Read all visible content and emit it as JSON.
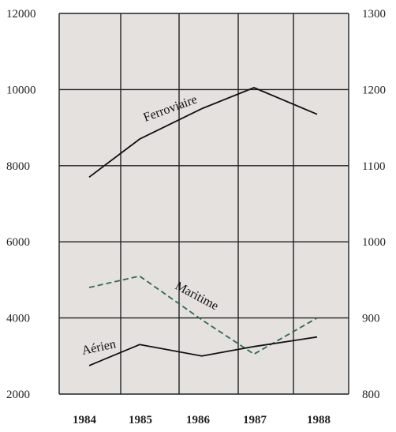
{
  "chart_data": {
    "type": "line",
    "title": "",
    "xlabel": "",
    "ylabel": "",
    "x": [
      "1984",
      "1985",
      "1986",
      "1987",
      "1988"
    ],
    "ylim_left": [
      2000,
      12000
    ],
    "ylim_right": [
      800,
      1300
    ],
    "yticks_left": [
      "2000",
      "4000",
      "6000",
      "8000",
      "10000",
      "12000"
    ],
    "yticks_right": [
      "800",
      "900",
      "1000",
      "1100",
      "1200",
      "1300"
    ],
    "grid": true,
    "legend": "none",
    "background": "#e4e1df",
    "series": [
      {
        "name": "Ferroviaire",
        "axis": "left",
        "style": "solid",
        "color": "#111111",
        "values": [
          7700,
          8700,
          9500,
          10050,
          9350
        ]
      },
      {
        "name": "Maritime",
        "axis": "left",
        "style": "dashed",
        "color": "#2f6b4f",
        "values": [
          4800,
          5100,
          3950,
          3050,
          4000
        ]
      },
      {
        "name": "Aérien",
        "axis": "left",
        "style": "solid",
        "color": "#111111",
        "values": [
          2750,
          3300,
          3000,
          3250,
          3500
        ]
      }
    ]
  }
}
